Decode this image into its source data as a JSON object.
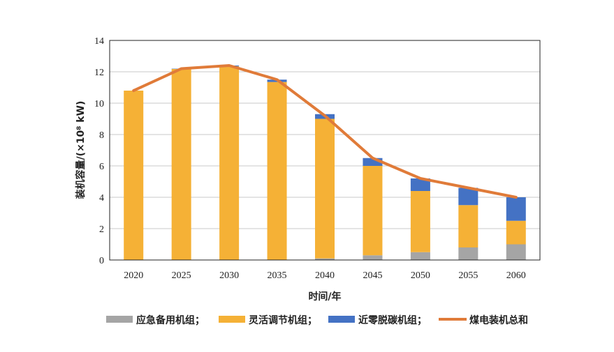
{
  "chart_data": {
    "type": "bar",
    "stacked": true,
    "title": "",
    "xlabel": "时间/年",
    "ylabel": "装机容量/(×10⁸ kW)",
    "ylim": [
      0,
      14
    ],
    "yticks": [
      0,
      2,
      4,
      6,
      8,
      10,
      12,
      14
    ],
    "grid": true,
    "legend_position": "bottom",
    "categories": [
      "2020",
      "2025",
      "2030",
      "2035",
      "2040",
      "2045",
      "2050",
      "2055",
      "2060"
    ],
    "series": [
      {
        "name": "应急备用机组；",
        "kind": "bar",
        "color": "#a5a5a5",
        "values": [
          0,
          0,
          0,
          0,
          0.1,
          0.3,
          0.5,
          0.8,
          1.0
        ]
      },
      {
        "name": "灵活调节机组；",
        "kind": "bar",
        "color": "#f5b136",
        "values": [
          10.8,
          12.18,
          12.35,
          11.35,
          8.9,
          5.7,
          3.9,
          2.7,
          1.5
        ]
      },
      {
        "name": "近零脱碳机组；",
        "kind": "bar",
        "color": "#4472c4",
        "values": [
          0,
          0.02,
          0.05,
          0.15,
          0.3,
          0.5,
          0.8,
          1.1,
          1.5
        ]
      },
      {
        "name": "煤电装机总和",
        "kind": "line",
        "color": "#e07b39",
        "values": [
          10.8,
          12.2,
          12.4,
          11.5,
          9.2,
          6.5,
          5.2,
          4.6,
          4.0
        ]
      }
    ]
  }
}
